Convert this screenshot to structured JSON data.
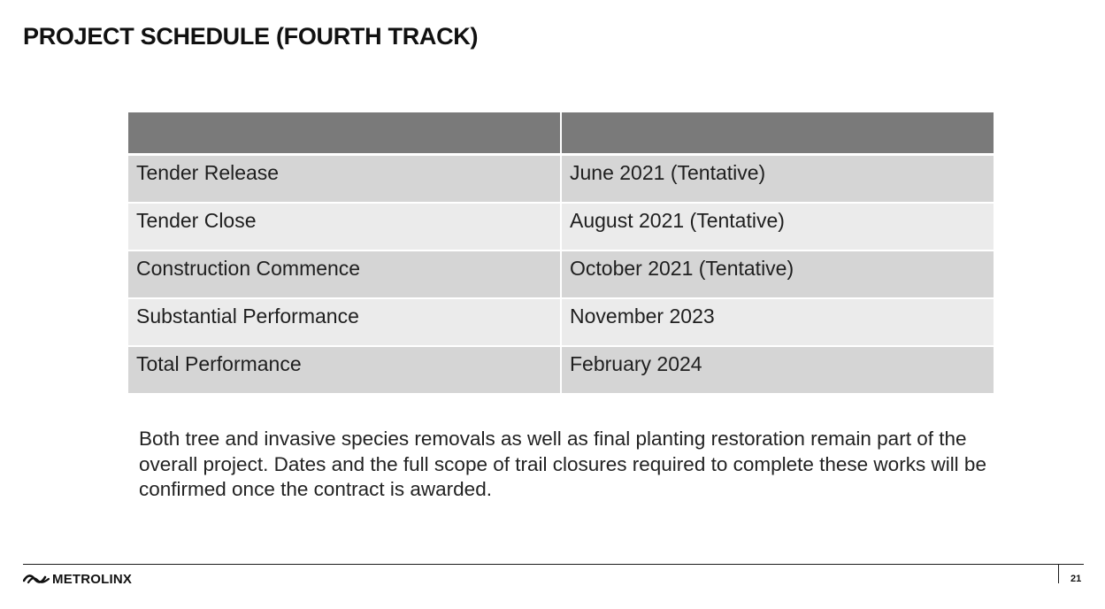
{
  "slide": {
    "title": "PROJECT SCHEDULE (FOURTH TRACK)",
    "page_number": "21"
  },
  "schedule_table": {
    "headers": [
      "",
      ""
    ],
    "rows": [
      {
        "milestone": "Tender Release",
        "date": "June 2021 (Tentative)"
      },
      {
        "milestone": "Tender Close",
        "date": "August 2021 (Tentative)"
      },
      {
        "milestone": "Construction Commence",
        "date": "October 2021 (Tentative)"
      },
      {
        "milestone": "Substantial Performance",
        "date": "November 2023"
      },
      {
        "milestone": "Total Performance",
        "date": "February 2024"
      }
    ]
  },
  "note": "Both tree and invasive species removals as well as final planting restoration remain part of the overall project. Dates and the full scope of trail closures required to complete these works will be confirmed once the contract is awarded.",
  "footer": {
    "logo_text": "METROLINX",
    "logo_icon": "metrolinx-wave-icon"
  },
  "colors": {
    "header_fill": "#7a7a7a",
    "row_dark": "#d5d5d5",
    "row_light": "#ebebeb"
  }
}
